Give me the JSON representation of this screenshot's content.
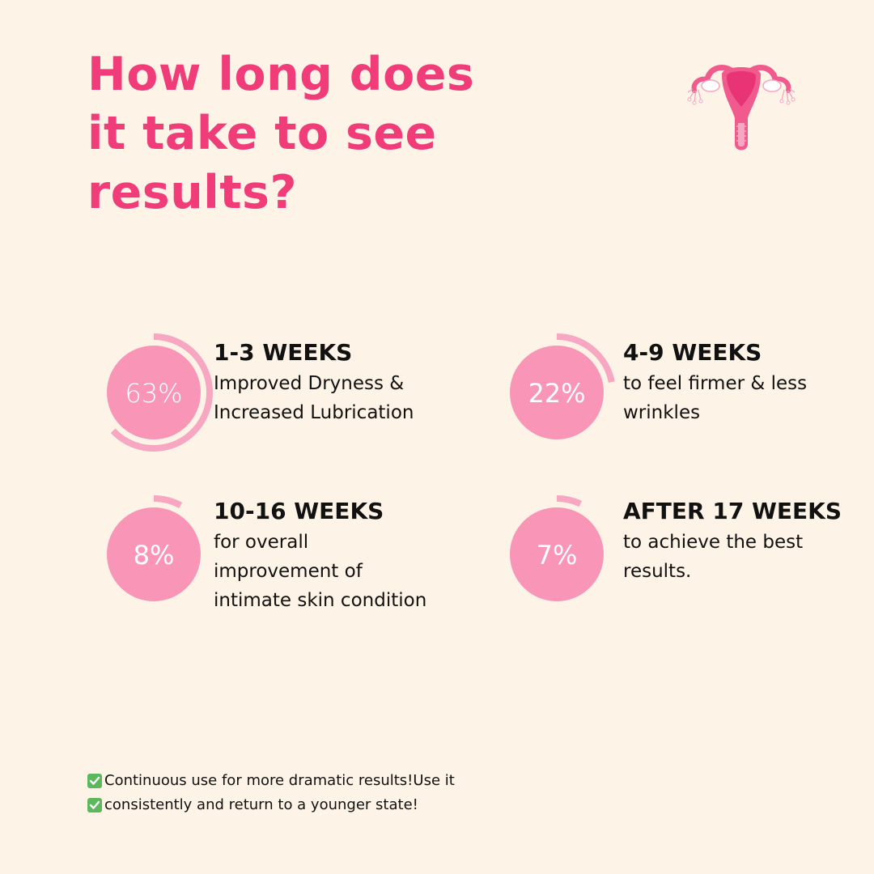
{
  "title_lines": [
    "How long does",
    "it take to see",
    "results?"
  ],
  "colors": {
    "background": "#fdf3e7",
    "accent": "#f03c78",
    "circle_fill": "#f996b8",
    "ring": "#f7a7c2",
    "check": "#5cb85c"
  },
  "icons": {
    "illustration": "uterus-icon",
    "check": "check-mark-icon"
  },
  "stats": [
    {
      "percent_label": "63%",
      "percent_value": 63,
      "weeks": "1-3 WEEKS",
      "desc_lines": [
        "Improved Dryness &",
        "Increased Lubrication"
      ]
    },
    {
      "percent_label": "22%",
      "percent_value": 22,
      "weeks": "4-9 WEEKS",
      "desc_lines": [
        "to feel firmer & less",
        "wrinkles"
      ]
    },
    {
      "percent_label": "8%",
      "percent_value": 8,
      "weeks": "10-16 WEEKS",
      "desc_lines": [
        "for overall",
        "improvement of",
        "intimate skin condition"
      ]
    },
    {
      "percent_label": "7%",
      "percent_value": 7,
      "weeks": "AFTER 17 WEEKS",
      "desc_lines": [
        "to achieve the best",
        "results."
      ]
    }
  ],
  "footer": {
    "lines": [
      "Continuous use for more dramatic results!Use it",
      "consistently and return to a younger state!"
    ]
  }
}
